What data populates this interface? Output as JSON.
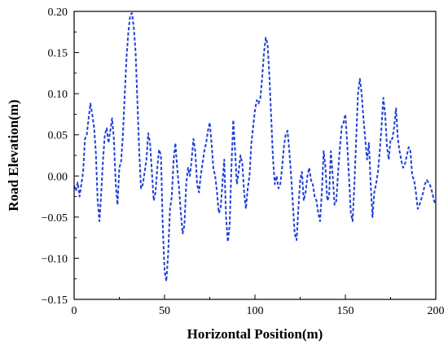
{
  "chart_data": {
    "type": "line",
    "xlabel": "Horizontal Position(m)",
    "ylabel": "Road Elevation(m)",
    "xlim": [
      0,
      200
    ],
    "ylim": [
      -0.15,
      0.2
    ],
    "x_ticks": [
      0,
      50,
      100,
      150,
      200
    ],
    "x_tick_labels": [
      "0",
      "50",
      "100",
      "150",
      "200"
    ],
    "y_ticks": [
      -0.15,
      -0.1,
      -0.05,
      0.0,
      0.05,
      0.1,
      0.15,
      0.2
    ],
    "y_tick_labels": [
      "−0.15",
      "−0.10",
      "−0.05",
      "0.00",
      "0.05",
      "0.10",
      "0.15",
      "0.20"
    ],
    "grid": false,
    "series": [
      {
        "color": "#1f3fd6",
        "dash": "dashed",
        "points": [
          [
            0,
            -0.012
          ],
          [
            1,
            -0.018
          ],
          [
            2,
            -0.008
          ],
          [
            3,
            -0.025
          ],
          [
            4,
            -0.01
          ],
          [
            5,
            0.005
          ],
          [
            6,
            0.045
          ],
          [
            7,
            0.05
          ],
          [
            8,
            0.07
          ],
          [
            9,
            0.088
          ],
          [
            10,
            0.075
          ],
          [
            11,
            0.06
          ],
          [
            12,
            0.03
          ],
          [
            13,
            -0.03
          ],
          [
            14,
            -0.055
          ],
          [
            15,
            -0.02
          ],
          [
            16,
            0.02
          ],
          [
            17,
            0.05
          ],
          [
            18,
            0.058
          ],
          [
            19,
            0.04
          ],
          [
            20,
            0.055
          ],
          [
            21,
            0.07
          ],
          [
            22,
            0.045
          ],
          [
            23,
            -0.01
          ],
          [
            24,
            -0.035
          ],
          [
            25,
            0.01
          ],
          [
            26,
            0.018
          ],
          [
            27,
            0.05
          ],
          [
            28,
            0.1
          ],
          [
            29,
            0.145
          ],
          [
            30,
            0.175
          ],
          [
            31,
            0.195
          ],
          [
            32,
            0.198
          ],
          [
            33,
            0.18
          ],
          [
            34,
            0.15
          ],
          [
            35,
            0.09
          ],
          [
            36,
            0.03
          ],
          [
            37,
            -0.015
          ],
          [
            38,
            -0.01
          ],
          [
            39,
            0.005
          ],
          [
            40,
            0.02
          ],
          [
            41,
            0.052
          ],
          [
            42,
            0.04
          ],
          [
            43,
            0.005
          ],
          [
            44,
            -0.03
          ],
          [
            45,
            -0.02
          ],
          [
            46,
            0.01
          ],
          [
            47,
            0.032
          ],
          [
            48,
            0.025
          ],
          [
            49,
            -0.06
          ],
          [
            50,
            -0.115
          ],
          [
            51,
            -0.128
          ],
          [
            52,
            -0.095
          ],
          [
            53,
            -0.04
          ],
          [
            54,
            -0.025
          ],
          [
            55,
            0.02
          ],
          [
            56,
            0.04
          ],
          [
            57,
            0.01
          ],
          [
            58,
            -0.015
          ],
          [
            59,
            -0.045
          ],
          [
            60,
            -0.07
          ],
          [
            61,
            -0.06
          ],
          [
            62,
            -0.01
          ],
          [
            63,
            0.01
          ],
          [
            64,
            0.0
          ],
          [
            65,
            0.02
          ],
          [
            66,
            0.045
          ],
          [
            67,
            0.03
          ],
          [
            68,
            -0.01
          ],
          [
            69,
            -0.02
          ],
          [
            70,
            0.0
          ],
          [
            71,
            0.015
          ],
          [
            72,
            0.03
          ],
          [
            73,
            0.04
          ],
          [
            74,
            0.055
          ],
          [
            75,
            0.065
          ],
          [
            76,
            0.04
          ],
          [
            77,
            0.01
          ],
          [
            78,
            0.0
          ],
          [
            79,
            -0.02
          ],
          [
            80,
            -0.045
          ],
          [
            81,
            -0.04
          ],
          [
            82,
            -0.01
          ],
          [
            83,
            0.02
          ],
          [
            84,
            -0.05
          ],
          [
            85,
            -0.08
          ],
          [
            86,
            -0.06
          ],
          [
            87,
            0.01
          ],
          [
            88,
            0.068
          ],
          [
            89,
            0.03
          ],
          [
            90,
            -0.01
          ],
          [
            91,
            0.005
          ],
          [
            92,
            0.025
          ],
          [
            93,
            0.015
          ],
          [
            94,
            -0.02
          ],
          [
            95,
            -0.04
          ],
          [
            96,
            -0.015
          ],
          [
            97,
            0.0
          ],
          [
            98,
            0.04
          ],
          [
            99,
            0.06
          ],
          [
            100,
            0.08
          ],
          [
            101,
            0.092
          ],
          [
            102,
            0.088
          ],
          [
            103,
            0.095
          ],
          [
            104,
            0.12
          ],
          [
            105,
            0.15
          ],
          [
            106,
            0.168
          ],
          [
            107,
            0.16
          ],
          [
            108,
            0.12
          ],
          [
            109,
            0.07
          ],
          [
            110,
            0.02
          ],
          [
            111,
            -0.01
          ],
          [
            112,
            0.0
          ],
          [
            113,
            -0.015
          ],
          [
            114,
            -0.01
          ],
          [
            115,
            0.01
          ],
          [
            116,
            0.035
          ],
          [
            117,
            0.05
          ],
          [
            118,
            0.055
          ],
          [
            119,
            0.03
          ],
          [
            120,
            0.0
          ],
          [
            121,
            -0.035
          ],
          [
            122,
            -0.07
          ],
          [
            123,
            -0.078
          ],
          [
            124,
            -0.04
          ],
          [
            125,
            -0.005
          ],
          [
            126,
            0.005
          ],
          [
            127,
            -0.03
          ],
          [
            128,
            -0.02
          ],
          [
            129,
            0.0
          ],
          [
            130,
            0.01
          ],
          [
            131,
            -0.005
          ],
          [
            132,
            -0.01
          ],
          [
            133,
            -0.025
          ],
          [
            134,
            -0.03
          ],
          [
            135,
            -0.045
          ],
          [
            136,
            -0.055
          ],
          [
            137,
            -0.02
          ],
          [
            138,
            0.03
          ],
          [
            139,
            0.01
          ],
          [
            140,
            -0.03
          ],
          [
            141,
            -0.025
          ],
          [
            142,
            0.03
          ],
          [
            143,
            0.0
          ],
          [
            144,
            -0.035
          ],
          [
            145,
            -0.03
          ],
          [
            146,
            0.005
          ],
          [
            147,
            0.035
          ],
          [
            148,
            0.06
          ],
          [
            149,
            0.065
          ],
          [
            150,
            0.075
          ],
          [
            151,
            0.04
          ],
          [
            152,
            0.0
          ],
          [
            153,
            -0.045
          ],
          [
            154,
            -0.055
          ],
          [
            155,
            -0.01
          ],
          [
            156,
            0.045
          ],
          [
            157,
            0.1
          ],
          [
            158,
            0.118
          ],
          [
            159,
            0.1
          ],
          [
            160,
            0.07
          ],
          [
            161,
            0.045
          ],
          [
            162,
            0.02
          ],
          [
            163,
            0.04
          ],
          [
            164,
            -0.01
          ],
          [
            165,
            -0.05
          ],
          [
            166,
            -0.02
          ],
          [
            167,
            -0.01
          ],
          [
            168,
            0.005
          ],
          [
            169,
            0.03
          ],
          [
            170,
            0.06
          ],
          [
            171,
            0.095
          ],
          [
            172,
            0.075
          ],
          [
            173,
            0.035
          ],
          [
            174,
            0.02
          ],
          [
            175,
            0.045
          ],
          [
            176,
            0.045
          ],
          [
            177,
            0.06
          ],
          [
            178,
            0.082
          ],
          [
            179,
            0.045
          ],
          [
            180,
            0.03
          ],
          [
            181,
            0.018
          ],
          [
            182,
            0.01
          ],
          [
            183,
            0.015
          ],
          [
            184,
            0.025
          ],
          [
            185,
            0.035
          ],
          [
            186,
            0.03
          ],
          [
            187,
            0.0
          ],
          [
            188,
            -0.005
          ],
          [
            189,
            -0.02
          ],
          [
            190,
            -0.04
          ],
          [
            191,
            -0.035
          ],
          [
            192,
            -0.028
          ],
          [
            193,
            -0.02
          ],
          [
            194,
            -0.01
          ],
          [
            195,
            -0.005
          ],
          [
            196,
            -0.008
          ],
          [
            197,
            -0.012
          ],
          [
            198,
            -0.02
          ],
          [
            199,
            -0.03
          ],
          [
            200,
            -0.035
          ]
        ]
      }
    ]
  }
}
